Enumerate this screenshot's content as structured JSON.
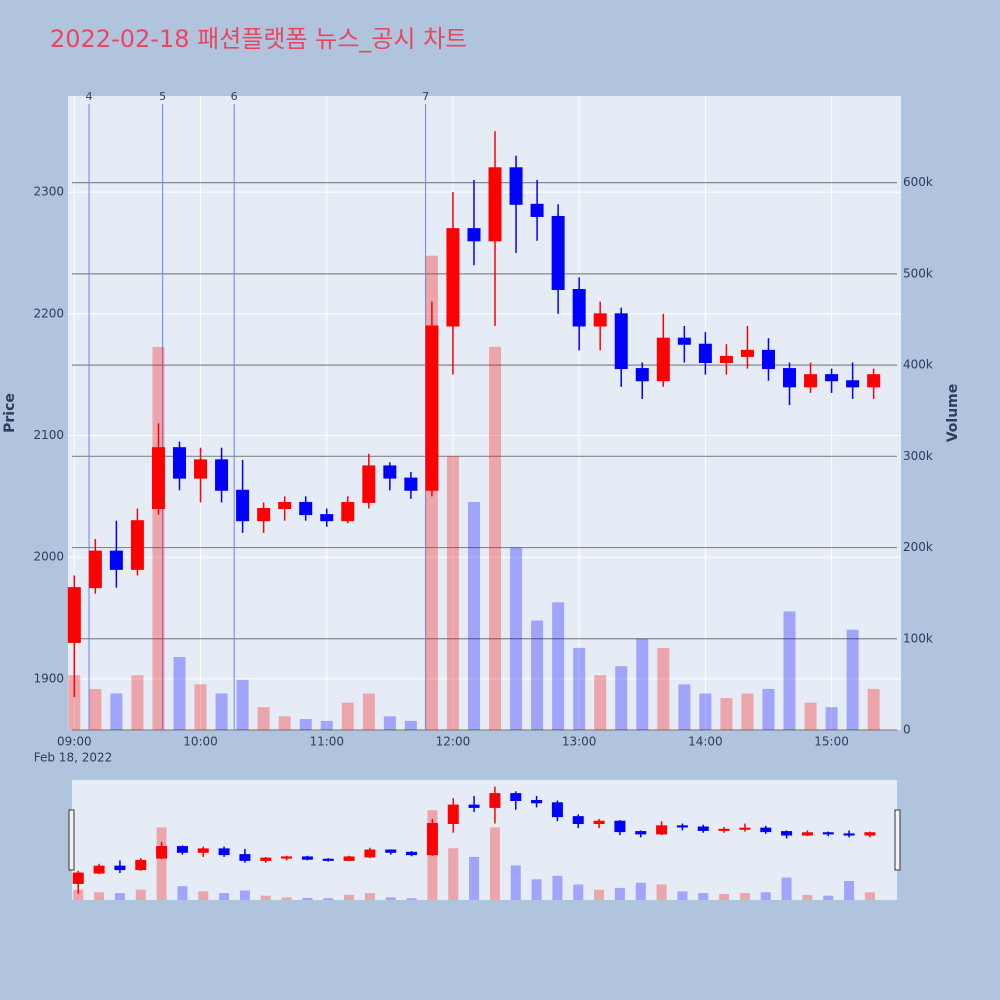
{
  "chart_data": {
    "type": "candlestick",
    "title": "2022-02-18 패션플랫폼 뉴스_공시 차트",
    "ylabel": "Price",
    "y2label": "Volume",
    "date_label": "Feb 18, 2022",
    "increasing_color": "#ff0000",
    "decreasing_color": "#0000ff",
    "news_color": "#6b7fff",
    "grid": true,
    "rangeslider": true,
    "x": [
      "09:00",
      "09:10",
      "09:20",
      "09:30",
      "09:40",
      "09:50",
      "10:00",
      "10:10",
      "10:20",
      "10:30",
      "10:40",
      "10:50",
      "11:00",
      "11:10",
      "11:20",
      "11:30",
      "11:40",
      "11:50",
      "12:00",
      "12:10",
      "12:20",
      "12:30",
      "12:40",
      "12:50",
      "13:00",
      "13:10",
      "13:20",
      "13:30",
      "13:40",
      "13:50",
      "14:00",
      "14:10",
      "14:20",
      "14:30",
      "14:40",
      "14:50",
      "15:00",
      "15:10",
      "15:20"
    ],
    "open": [
      1930,
      1975,
      2005,
      1990,
      2040,
      2090,
      2065,
      2080,
      2055,
      2030,
      2040,
      2045,
      2035,
      2030,
      2045,
      2075,
      2065,
      2055,
      2190,
      2270,
      2260,
      2320,
      2290,
      2280,
      2220,
      2190,
      2200,
      2155,
      2145,
      2180,
      2175,
      2160,
      2165,
      2170,
      2155,
      2140,
      2150,
      2145,
      2140
    ],
    "high": [
      1985,
      2015,
      2030,
      2040,
      2110,
      2095,
      2090,
      2090,
      2080,
      2045,
      2050,
      2050,
      2040,
      2050,
      2085,
      2078,
      2070,
      2210,
      2300,
      2310,
      2350,
      2330,
      2310,
      2290,
      2230,
      2210,
      2205,
      2160,
      2200,
      2190,
      2185,
      2175,
      2190,
      2180,
      2160,
      2160,
      2155,
      2160,
      2155
    ],
    "low": [
      1885,
      1970,
      1975,
      1985,
      2035,
      2055,
      2045,
      2045,
      2020,
      2020,
      2030,
      2030,
      2025,
      2028,
      2040,
      2055,
      2048,
      2050,
      2150,
      2240,
      2190,
      2250,
      2260,
      2200,
      2170,
      2170,
      2140,
      2130,
      2140,
      2160,
      2150,
      2150,
      2155,
      2145,
      2125,
      2135,
      2135,
      2130,
      2130
    ],
    "close": [
      1975,
      2005,
      1990,
      2030,
      2090,
      2065,
      2080,
      2055,
      2030,
      2040,
      2045,
      2035,
      2030,
      2045,
      2075,
      2065,
      2055,
      2190,
      2270,
      2260,
      2320,
      2290,
      2280,
      2220,
      2190,
      2200,
      2155,
      2145,
      2180,
      2175,
      2160,
      2165,
      2170,
      2155,
      2140,
      2150,
      2145,
      2140,
      2150
    ],
    "volume": [
      60000,
      45000,
      40000,
      60000,
      420000,
      80000,
      50000,
      40000,
      55000,
      25000,
      15000,
      12000,
      10000,
      30000,
      40000,
      15000,
      10000,
      520000,
      300000,
      250000,
      420000,
      200000,
      120000,
      140000,
      90000,
      60000,
      70000,
      100000,
      90000,
      50000,
      40000,
      35000,
      40000,
      45000,
      130000,
      30000,
      25000,
      110000,
      45000
    ],
    "annotations": [
      {
        "x": "09:07",
        "label": "4"
      },
      {
        "x": "09:42",
        "label": "5"
      },
      {
        "x": "10:16",
        "label": "6"
      },
      {
        "x": "11:47",
        "label": "7"
      }
    ],
    "xlim": [
      "08:57",
      "15:33"
    ],
    "xticks": [
      "09:00",
      "10:00",
      "11:00",
      "12:00",
      "13:00",
      "14:00",
      "15:00"
    ],
    "ylim": [
      1858,
      2379
    ],
    "yticks": [
      1900,
      2000,
      2100,
      2200,
      2300
    ],
    "y2lim": [
      0,
      695000
    ],
    "y2ticks": [
      0,
      {
        "value": 100000,
        "label": "100k"
      },
      {
        "value": 200000,
        "label": "200k"
      },
      {
        "value": 300000,
        "label": "300k"
      },
      {
        "value": 400000,
        "label": "400k"
      },
      {
        "value": 500000,
        "label": "500k"
      },
      {
        "value": 600000,
        "label": "600k"
      }
    ]
  }
}
